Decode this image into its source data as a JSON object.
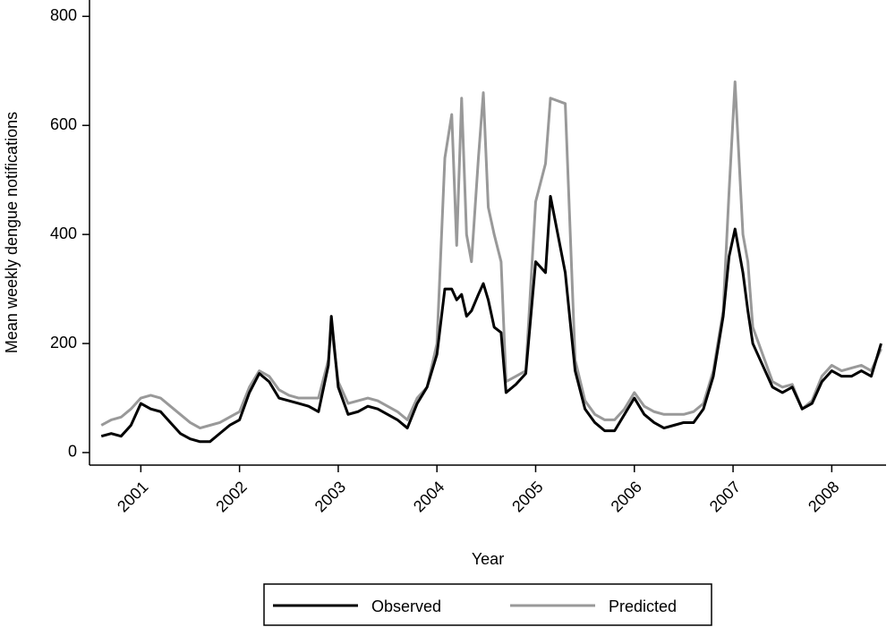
{
  "chart_data": {
    "type": "line",
    "xlabel": "Year",
    "ylabel": "Mean weekly dengue notifications",
    "x": [
      2000.6,
      2000.7,
      2000.8,
      2000.9,
      2001.0,
      2001.1,
      2001.2,
      2001.3,
      2001.4,
      2001.5,
      2001.6,
      2001.7,
      2001.8,
      2001.9,
      2002.0,
      2002.1,
      2002.2,
      2002.3,
      2002.4,
      2002.5,
      2002.6,
      2002.7,
      2002.8,
      2002.9,
      2002.93,
      2003.0,
      2003.1,
      2003.2,
      2003.3,
      2003.4,
      2003.5,
      2003.6,
      2003.7,
      2003.8,
      2003.9,
      2004.0,
      2004.08,
      2004.15,
      2004.2,
      2004.25,
      2004.3,
      2004.35,
      2004.42,
      2004.47,
      2004.52,
      2004.58,
      2004.65,
      2004.7,
      2004.8,
      2004.9,
      2005.0,
      2005.1,
      2005.15,
      2005.3,
      2005.4,
      2005.5,
      2005.6,
      2005.7,
      2005.8,
      2005.9,
      2006.0,
      2006.1,
      2006.2,
      2006.3,
      2006.4,
      2006.5,
      2006.6,
      2006.7,
      2006.8,
      2006.9,
      2006.96,
      2007.02,
      2007.1,
      2007.15,
      2007.2,
      2007.3,
      2007.4,
      2007.5,
      2007.6,
      2007.7,
      2007.8,
      2007.9,
      2008.0,
      2008.1,
      2008.2,
      2008.3,
      2008.4,
      2008.5
    ],
    "series": [
      {
        "name": "Observed",
        "color": "#000000",
        "values": [
          30,
          35,
          30,
          50,
          90,
          80,
          75,
          55,
          35,
          25,
          20,
          20,
          35,
          50,
          60,
          110,
          145,
          130,
          100,
          95,
          90,
          85,
          75,
          160,
          250,
          120,
          70,
          75,
          85,
          80,
          70,
          60,
          45,
          90,
          120,
          180,
          300,
          300,
          280,
          290,
          250,
          260,
          290,
          310,
          280,
          230,
          220,
          110,
          125,
          145,
          350,
          330,
          470,
          330,
          150,
          80,
          55,
          40,
          40,
          70,
          100,
          70,
          55,
          45,
          50,
          55,
          55,
          80,
          140,
          250,
          360,
          410,
          330,
          260,
          200,
          160,
          120,
          110,
          120,
          80,
          90,
          130,
          150,
          140,
          140,
          150,
          140,
          200
        ]
      },
      {
        "name": "Predicted",
        "color": "#999999",
        "values": [
          50,
          60,
          65,
          80,
          100,
          105,
          100,
          85,
          70,
          55,
          45,
          50,
          55,
          65,
          75,
          120,
          150,
          140,
          115,
          105,
          100,
          100,
          100,
          170,
          230,
          130,
          90,
          95,
          100,
          95,
          85,
          75,
          60,
          100,
          120,
          200,
          540,
          620,
          380,
          650,
          400,
          350,
          540,
          660,
          450,
          400,
          350,
          130,
          140,
          150,
          460,
          530,
          650,
          640,
          170,
          95,
          70,
          60,
          60,
          80,
          110,
          85,
          75,
          70,
          70,
          70,
          75,
          90,
          150,
          260,
          480,
          680,
          400,
          350,
          230,
          180,
          130,
          120,
          125,
          80,
          95,
          140,
          160,
          150,
          155,
          160,
          150,
          190
        ]
      }
    ],
    "xlim": [
      2000.48,
      2008.55
    ],
    "xticks": [
      2001,
      2002,
      2003,
      2004,
      2005,
      2006,
      2007,
      2008
    ],
    "ylim": [
      -23,
      830
    ],
    "yticks": [
      0,
      200,
      400,
      600,
      800
    ],
    "legend": "bottom"
  }
}
